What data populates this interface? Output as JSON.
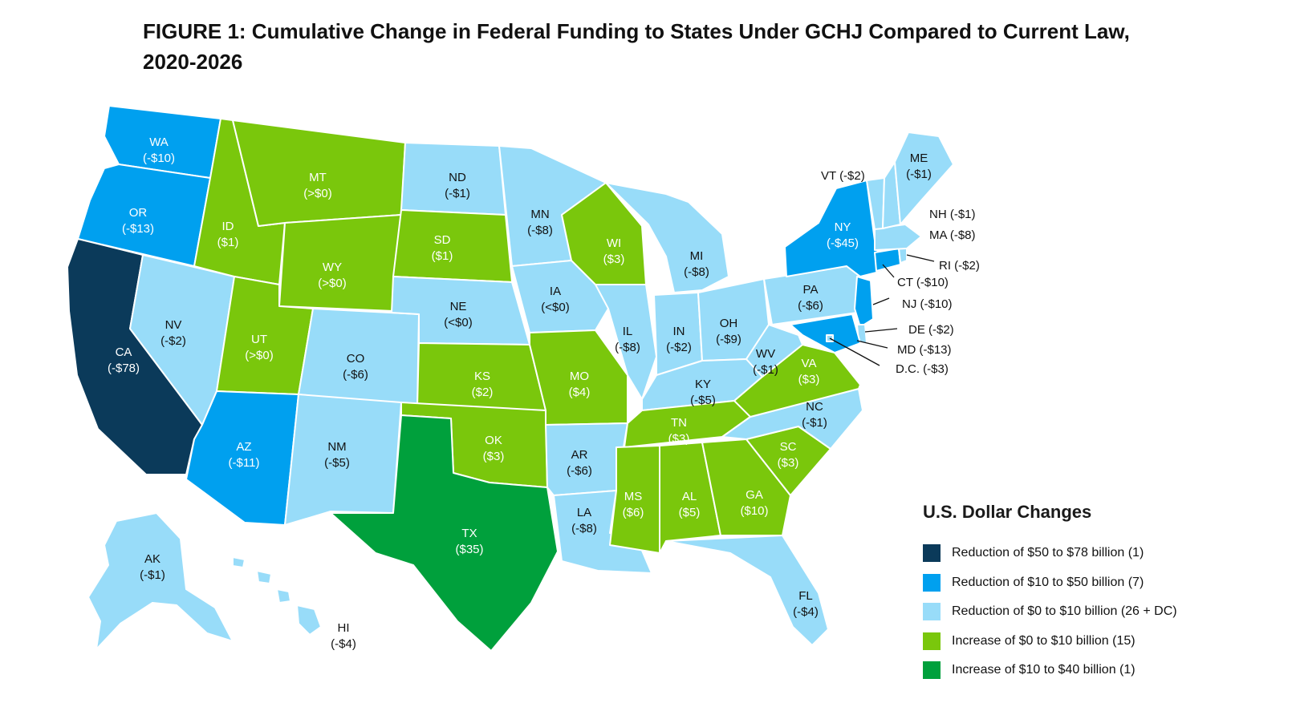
{
  "title": "FIGURE 1: Cumulative Change in Federal Funding to States Under GCHJ Compared to Current Law, 2020-2026",
  "colors": {
    "dark_navy": "#0b3a5a",
    "blue": "#00a0ef",
    "light_blue": "#98dcf9",
    "light_green": "#7ac70c",
    "green": "#00a03c"
  },
  "states": {
    "WA": {
      "abbr": "WA",
      "value": "(-$10)",
      "category": "blue"
    },
    "OR": {
      "abbr": "OR",
      "value": "(-$13)",
      "category": "blue"
    },
    "CA": {
      "abbr": "CA",
      "value": "(-$78)",
      "category": "dark_navy"
    },
    "NV": {
      "abbr": "NV",
      "value": "(-$2)",
      "category": "light_blue"
    },
    "ID": {
      "abbr": "ID",
      "value": "($1)",
      "category": "light_green"
    },
    "MT": {
      "abbr": "MT",
      "value": "(>$0)",
      "category": "light_green"
    },
    "WY": {
      "abbr": "WY",
      "value": "(>$0)",
      "category": "light_green"
    },
    "UT": {
      "abbr": "UT",
      "value": "(>$0)",
      "category": "light_green"
    },
    "AZ": {
      "abbr": "AZ",
      "value": "(-$11)",
      "category": "blue"
    },
    "CO": {
      "abbr": "CO",
      "value": "(-$6)",
      "category": "light_blue"
    },
    "NM": {
      "abbr": "NM",
      "value": "(-$5)",
      "category": "light_blue"
    },
    "ND": {
      "abbr": "ND",
      "value": "(-$1)",
      "category": "light_blue"
    },
    "SD": {
      "abbr": "SD",
      "value": "($1)",
      "category": "light_green"
    },
    "NE": {
      "abbr": "NE",
      "value": "(<$0)",
      "category": "light_blue"
    },
    "KS": {
      "abbr": "KS",
      "value": "($2)",
      "category": "light_green"
    },
    "OK": {
      "abbr": "OK",
      "value": "($3)",
      "category": "light_green"
    },
    "TX": {
      "abbr": "TX",
      "value": "($35)",
      "category": "green"
    },
    "MN": {
      "abbr": "MN",
      "value": "(-$8)",
      "category": "light_blue"
    },
    "IA": {
      "abbr": "IA",
      "value": "(<$0)",
      "category": "light_blue"
    },
    "MO": {
      "abbr": "MO",
      "value": "($4)",
      "category": "light_green"
    },
    "AR": {
      "abbr": "AR",
      "value": "(-$6)",
      "category": "light_blue"
    },
    "LA": {
      "abbr": "LA",
      "value": "(-$8)",
      "category": "light_blue"
    },
    "WI": {
      "abbr": "WI",
      "value": "($3)",
      "category": "light_green"
    },
    "IL": {
      "abbr": "IL",
      "value": "(-$8)",
      "category": "light_blue"
    },
    "MI": {
      "abbr": "MI",
      "value": "(-$8)",
      "category": "light_blue"
    },
    "IN": {
      "abbr": "IN",
      "value": "(-$2)",
      "category": "light_blue"
    },
    "OH": {
      "abbr": "OH",
      "value": "(-$9)",
      "category": "light_blue"
    },
    "KY": {
      "abbr": "KY",
      "value": "(-$5)",
      "category": "light_blue"
    },
    "TN": {
      "abbr": "TN",
      "value": "($3)",
      "category": "light_green"
    },
    "MS": {
      "abbr": "MS",
      "value": "($6)",
      "category": "light_green"
    },
    "AL": {
      "abbr": "AL",
      "value": "($5)",
      "category": "light_green"
    },
    "GA": {
      "abbr": "GA",
      "value": "($10)",
      "category": "light_green"
    },
    "FL": {
      "abbr": "FL",
      "value": "(-$4)",
      "category": "light_blue"
    },
    "SC": {
      "abbr": "SC",
      "value": "($3)",
      "category": "light_green"
    },
    "NC": {
      "abbr": "NC",
      "value": "(-$1)",
      "category": "light_blue"
    },
    "VA": {
      "abbr": "VA",
      "value": "($3)",
      "category": "light_green"
    },
    "WV": {
      "abbr": "WV",
      "value": "(-$1)",
      "category": "light_blue"
    },
    "PA": {
      "abbr": "PA",
      "value": "(-$6)",
      "category": "light_blue"
    },
    "NY": {
      "abbr": "NY",
      "value": "(-$45)",
      "category": "blue"
    },
    "ME": {
      "abbr": "ME",
      "value": "(-$1)",
      "category": "light_blue"
    },
    "AK": {
      "abbr": "AK",
      "value": "(-$1)",
      "category": "light_blue"
    },
    "HI": {
      "abbr": "HI",
      "value": "(-$4)",
      "category": "light_blue"
    }
  },
  "callouts": {
    "VT": {
      "label": "VT (-$2)",
      "category": "light_blue"
    },
    "NH": {
      "label": "NH (-$1)",
      "category": "light_blue"
    },
    "MA": {
      "label": "MA  (-$8)",
      "category": "light_blue"
    },
    "RI": {
      "label": "RI (-$2)",
      "category": "light_blue"
    },
    "CT": {
      "label": "CT (-$10)",
      "category": "blue"
    },
    "NJ": {
      "label": "NJ (-$10)",
      "category": "blue"
    },
    "DE": {
      "label": "DE (-$2)",
      "category": "light_blue"
    },
    "MD": {
      "label": "MD (-$13)",
      "category": "blue"
    },
    "DC": {
      "label": "D.C. (-$3)",
      "category": "light_blue"
    }
  },
  "legend": {
    "title": "U.S. Dollar Changes",
    "items": [
      {
        "label": "Reduction of $50 to $78 billion (1)",
        "color": "#0b3a5a"
      },
      {
        "label": "Reduction of $10 to $50 billion (7)",
        "color": "#00a0ef"
      },
      {
        "label": "Reduction of $0 to $10 billion (26 + DC)",
        "color": "#98dcf9"
      },
      {
        "label": "Increase of $0 to $10 billion (15)",
        "color": "#7ac70c"
      },
      {
        "label": "Increase of $10 to $40 billion (1)",
        "color": "#00a03c"
      }
    ]
  }
}
